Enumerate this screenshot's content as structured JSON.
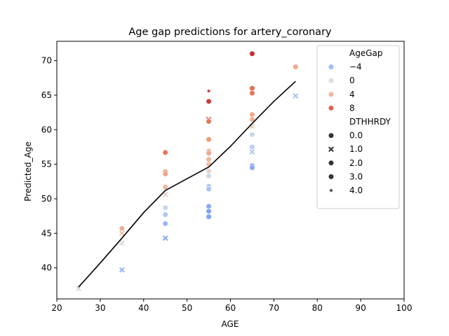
{
  "chart_data": {
    "type": "scatter",
    "title": "Age gap predictions for artery_coronary",
    "xlabel": "AGE",
    "ylabel": "Predicted_Age",
    "xlim": [
      20,
      100
    ],
    "ylim": [
      35.5,
      72.8
    ],
    "xticks": [
      20,
      30,
      40,
      50,
      60,
      70,
      80,
      90,
      100
    ],
    "yticks": [
      40,
      45,
      50,
      55,
      60,
      65,
      70
    ],
    "grid": false,
    "legend": {
      "position": "top-right",
      "hue_title": "AgeGap",
      "hue_entries": [
        {
          "label": "−4",
          "color": "#9dbdfc"
        },
        {
          "label": "0",
          "color": "#dcdddd"
        },
        {
          "label": "4",
          "color": "#f4b59a"
        },
        {
          "label": "8",
          "color": "#e0654f"
        }
      ],
      "style_title": "DTHHRDY",
      "style_entries": [
        {
          "label": "0.0",
          "marker": "circle"
        },
        {
          "label": "1.0",
          "marker": "x"
        },
        {
          "label": "2.0",
          "marker": "circle"
        },
        {
          "label": "3.0",
          "marker": "circle"
        },
        {
          "label": "4.0",
          "marker": "star"
        }
      ]
    },
    "hue_colormap": {
      "name": "coolwarm",
      "stops": [
        {
          "gap": -6,
          "color": "#7fa4f5"
        },
        {
          "gap": -2,
          "color": "#c3d4f4"
        },
        {
          "gap": 0,
          "color": "#dcdddd"
        },
        {
          "gap": 2,
          "color": "#efc6b0"
        },
        {
          "gap": 5,
          "color": "#f0997a"
        },
        {
          "gap": 8,
          "color": "#e0654f"
        },
        {
          "gap": 10,
          "color": "#c43030"
        }
      ]
    },
    "points": [
      {
        "x": 25,
        "y": 37.0,
        "gap": 0.3,
        "style": 1.0
      },
      {
        "x": 35,
        "y": 45.7,
        "gap": 3.5,
        "style": 0.0
      },
      {
        "x": 35,
        "y": 45.0,
        "gap": 2.5,
        "style": 1.0
      },
      {
        "x": 35,
        "y": 43.6,
        "gap": 0.5,
        "style": 1.0
      },
      {
        "x": 35,
        "y": 39.7,
        "gap": -4.5,
        "style": 1.0
      },
      {
        "x": 45,
        "y": 56.7,
        "gap": 7.0,
        "style": 0.0
      },
      {
        "x": 45,
        "y": 53.9,
        "gap": 4.8,
        "style": 0.0
      },
      {
        "x": 45,
        "y": 53.6,
        "gap": 4.4,
        "style": 0.0
      },
      {
        "x": 45,
        "y": 51.7,
        "gap": 3.0,
        "style": 0.0
      },
      {
        "x": 45,
        "y": 50.6,
        "gap": 1.0,
        "style": 1.0
      },
      {
        "x": 45,
        "y": 48.7,
        "gap": -1.5,
        "style": 0.0
      },
      {
        "x": 45,
        "y": 47.7,
        "gap": -3.2,
        "style": 0.0
      },
      {
        "x": 45,
        "y": 46.4,
        "gap": -4.5,
        "style": 0.0
      },
      {
        "x": 45,
        "y": 44.3,
        "gap": -5.5,
        "style": 1.0
      },
      {
        "x": 55,
        "y": 65.6,
        "gap": 10.0,
        "style": 4.0
      },
      {
        "x": 55,
        "y": 64.1,
        "gap": 9.5,
        "style": 0.0
      },
      {
        "x": 55,
        "y": 61.5,
        "gap": 7.5,
        "style": 1.0
      },
      {
        "x": 55,
        "y": 61.2,
        "gap": 7.0,
        "style": 0.0
      },
      {
        "x": 55,
        "y": 58.6,
        "gap": 5.0,
        "style": 0.0
      },
      {
        "x": 55,
        "y": 56.9,
        "gap": 3.5,
        "style": 0.0
      },
      {
        "x": 55,
        "y": 56.6,
        "gap": 4.0,
        "style": 0.0
      },
      {
        "x": 55,
        "y": 55.7,
        "gap": 3.0,
        "style": 0.0
      },
      {
        "x": 55,
        "y": 55.0,
        "gap": 2.5,
        "style": 0.0
      },
      {
        "x": 55,
        "y": 54.0,
        "gap": 1.0,
        "style": 0.0
      },
      {
        "x": 55,
        "y": 53.3,
        "gap": -1.0,
        "style": 0.0
      },
      {
        "x": 55,
        "y": 51.8,
        "gap": -3.0,
        "style": 0.0
      },
      {
        "x": 55,
        "y": 51.4,
        "gap": -3.4,
        "style": 0.0
      },
      {
        "x": 55,
        "y": 48.9,
        "gap": -5.5,
        "style": 0.0
      },
      {
        "x": 55,
        "y": 48.2,
        "gap": -6.0,
        "style": 0.0
      },
      {
        "x": 55,
        "y": 47.4,
        "gap": -6.5,
        "style": 0.0
      },
      {
        "x": 55,
        "y": 47.4,
        "gap": -6.5,
        "style": 0.0
      },
      {
        "x": 65,
        "y": 71.0,
        "gap": 10.0,
        "style": 0.0
      },
      {
        "x": 65,
        "y": 66.0,
        "gap": 7.5,
        "style": 0.0
      },
      {
        "x": 65,
        "y": 65.3,
        "gap": 7.0,
        "style": 0.0
      },
      {
        "x": 65,
        "y": 62.2,
        "gap": 4.0,
        "style": 0.0
      },
      {
        "x": 65,
        "y": 61.5,
        "gap": 3.5,
        "style": 0.0
      },
      {
        "x": 65,
        "y": 60.5,
        "gap": 1.5,
        "style": 1.0
      },
      {
        "x": 65,
        "y": 59.3,
        "gap": -1.5,
        "style": 0.0
      },
      {
        "x": 65,
        "y": 57.5,
        "gap": -2.5,
        "style": 0.0
      },
      {
        "x": 65,
        "y": 56.8,
        "gap": -3.0,
        "style": 1.0
      },
      {
        "x": 65,
        "y": 54.8,
        "gap": -5.0,
        "style": 0.0
      },
      {
        "x": 65,
        "y": 54.5,
        "gap": -5.5,
        "style": 0.0
      },
      {
        "x": 75,
        "y": 69.1,
        "gap": 4.0,
        "style": 0.0
      },
      {
        "x": 75,
        "y": 64.9,
        "gap": -3.5,
        "style": 1.0
      }
    ],
    "trend_line": {
      "x": [
        25,
        30,
        35,
        40,
        45,
        50,
        55,
        60,
        65,
        70,
        75
      ],
      "y": [
        37.2,
        40.7,
        44.3,
        48.0,
        51.2,
        52.9,
        54.6,
        57.6,
        60.9,
        64.1,
        67.0
      ]
    }
  }
}
